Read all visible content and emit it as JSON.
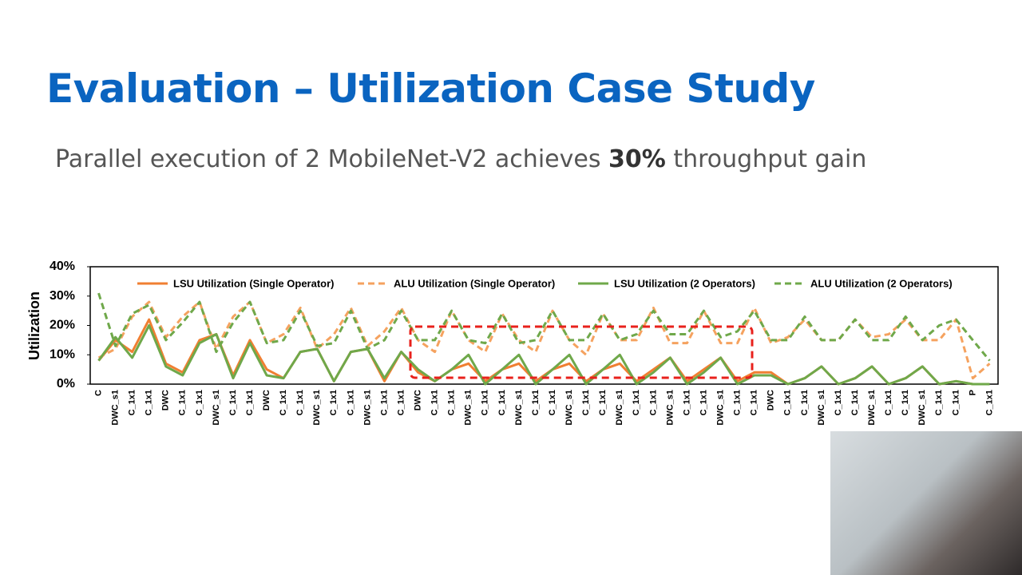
{
  "title": "Evaluation – Utilization Case Study",
  "subtitle": [
    "Parallel execution of 2 MobileNet-V2 achieves ",
    "30%",
    " throughput gain"
  ],
  "chart_data": {
    "type": "line",
    "ylabel": "Utilization",
    "ylim": [
      0,
      40
    ],
    "yticks": [
      {
        "value": 0,
        "label": "0%"
      },
      {
        "value": 10,
        "label": "10%"
      },
      {
        "value": 20,
        "label": "20%"
      },
      {
        "value": 30,
        "label": "30%"
      },
      {
        "value": 40,
        "label": "40%"
      }
    ],
    "categories": [
      "C",
      "DWC_s1",
      "C_1x1",
      "C_1x1",
      "DWC",
      "C_1x1",
      "C_1x1",
      "DWC_s1",
      "C_1x1",
      "C_1x1",
      "DWC",
      "C_1x1",
      "C_1x1",
      "DWC_s1",
      "C_1x1",
      "C_1x1",
      "DWC_s1",
      "C_1x1",
      "C_1x1",
      "DWC",
      "C_1x1",
      "C_1x1",
      "DWC_s1",
      "C_1x1",
      "C_1x1",
      "DWC_s1",
      "C_1x1",
      "C_1x1",
      "DWC_s1",
      "C_1x1",
      "C_1x1",
      "DWC_s1",
      "C_1x1",
      "C_1x1",
      "DWC_s1",
      "C_1x1",
      "C_1x1",
      "DWC_s1",
      "C_1x1",
      "C_1x1",
      "DWC",
      "C_1x1",
      "C_1x1",
      "DWC_s1",
      "C_1x1",
      "C_1x1",
      "DWC_s1",
      "C_1x1",
      "C_1x1",
      "DWC_s1",
      "C_1x1",
      "C_1x1",
      "P",
      "C_1x1"
    ],
    "series": [
      {
        "name": "LSU Utilization (Single Operator)",
        "color": "#f07f32",
        "dashed": false,
        "values": [
          8,
          15,
          11,
          22,
          7,
          4,
          15,
          17,
          3,
          15,
          5,
          2,
          11,
          12,
          1,
          11,
          12,
          1,
          11,
          4,
          1,
          5,
          7,
          1,
          5,
          7,
          1,
          5,
          7,
          1,
          5,
          7,
          1,
          5,
          9,
          1,
          5,
          9,
          1,
          4,
          4,
          0,
          2,
          6,
          0,
          2,
          6,
          0,
          2,
          6,
          0,
          1,
          0,
          0
        ]
      },
      {
        "name": "ALU Utilization (Single Operator)",
        "color": "#f5a25f",
        "dashed": true,
        "values": [
          9,
          12,
          23,
          28,
          16,
          23,
          28,
          12,
          23,
          28,
          14,
          17,
          26,
          12,
          17,
          26,
          13,
          18,
          26,
          15,
          11,
          25,
          15,
          11,
          24,
          15,
          11,
          25,
          15,
          10,
          24,
          15,
          15,
          26,
          14,
          14,
          25,
          14,
          14,
          26,
          14,
          16,
          22,
          15,
          15,
          22,
          16,
          17,
          22,
          15,
          15,
          22,
          2,
          7
        ]
      },
      {
        "name": "LSU Utilization (2 Operators)",
        "color": "#6fa84a",
        "dashed": false,
        "values": [
          8,
          16,
          9,
          20,
          6,
          3,
          14,
          17,
          2,
          14,
          3,
          2,
          11,
          12,
          1,
          11,
          12,
          2,
          11,
          5,
          1,
          5,
          10,
          0,
          5,
          10,
          0,
          5,
          10,
          0,
          5,
          10,
          0,
          4,
          9,
          0,
          4,
          9,
          0,
          3,
          3,
          0,
          2,
          6,
          0,
          2,
          6,
          0,
          2,
          6,
          0,
          1,
          0,
          0
        ]
      },
      {
        "name": "ALU Utilization (2 Operators)",
        "color": "#6fa84a",
        "dashed": true,
        "values": [
          31,
          13,
          24,
          27,
          15,
          21,
          28,
          11,
          21,
          28,
          14,
          15,
          25,
          13,
          14,
          25,
          12,
          15,
          25,
          15,
          15,
          25,
          15,
          14,
          24,
          14,
          15,
          25,
          15,
          15,
          24,
          15,
          17,
          25,
          17,
          17,
          25,
          16,
          18,
          25,
          15,
          15,
          23,
          15,
          15,
          22,
          15,
          15,
          23,
          15,
          20,
          22,
          15,
          8
        ]
      }
    ]
  }
}
